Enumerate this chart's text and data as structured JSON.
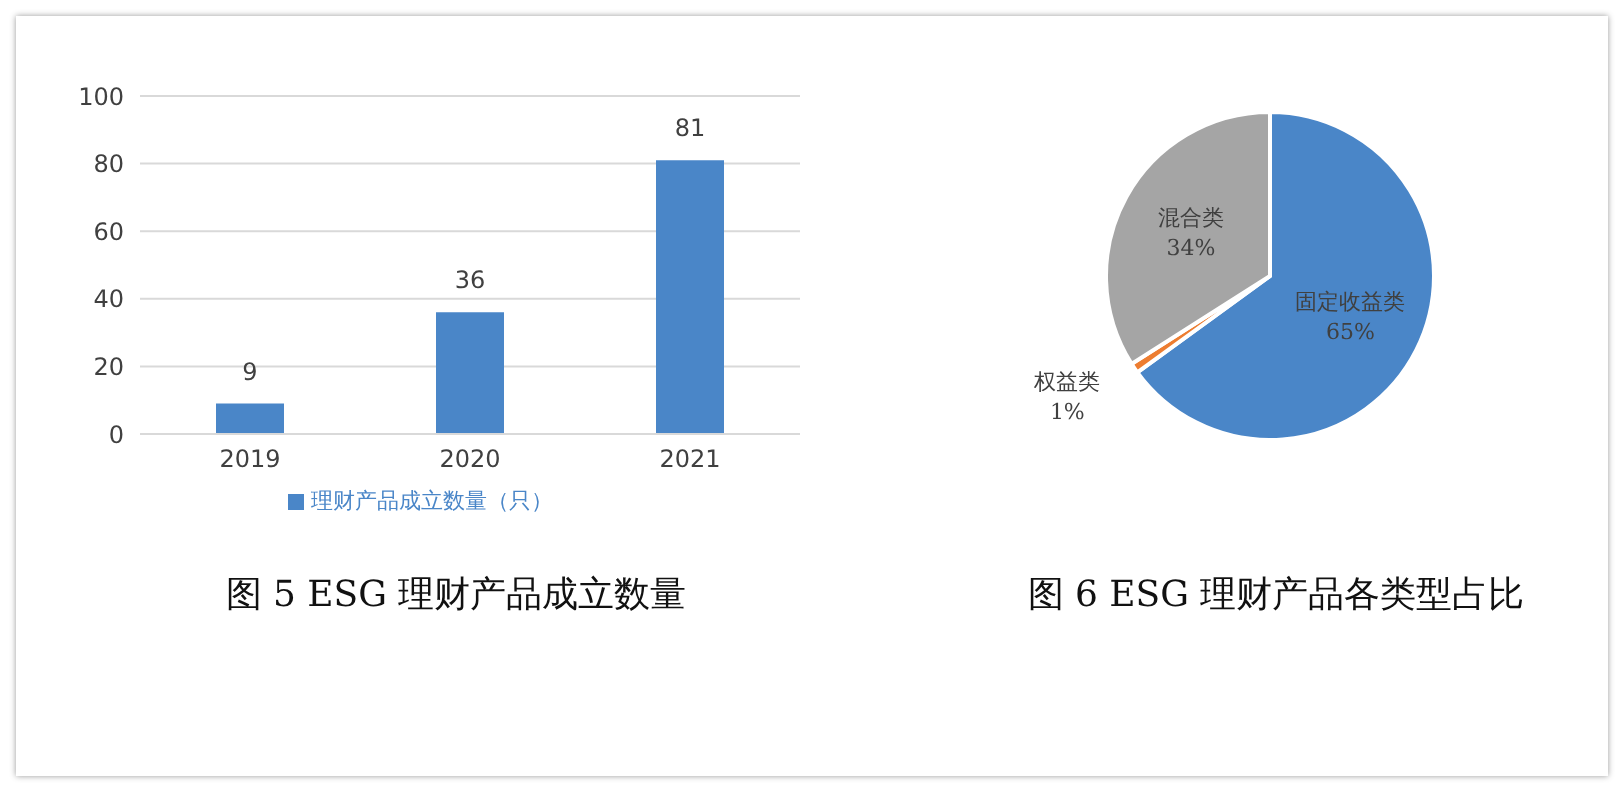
{
  "chart_data": [
    {
      "type": "bar",
      "title": "图 5 ESG 理财产品成立数量",
      "categories": [
        "2019",
        "2020",
        "2021"
      ],
      "series": [
        {
          "name": "理财产品成立数量（只）",
          "color": "#4a86c8",
          "values": [
            9,
            36,
            81
          ]
        }
      ],
      "ylim": [
        0,
        100
      ],
      "yticks": [
        0,
        20,
        40,
        60,
        80,
        100
      ],
      "grid": "y",
      "legend": "bottom",
      "data_labels": true
    },
    {
      "type": "pie",
      "title": "图 6 ESG 理财产品各类型占比",
      "categories": [
        "固定收益类",
        "权益类",
        "混合类"
      ],
      "values": [
        65,
        1,
        34
      ],
      "value_labels": [
        "65%",
        "1%",
        "34%"
      ],
      "colors": [
        "#4a86c8",
        "#ed7d31",
        "#a5a5a5"
      ]
    }
  ]
}
